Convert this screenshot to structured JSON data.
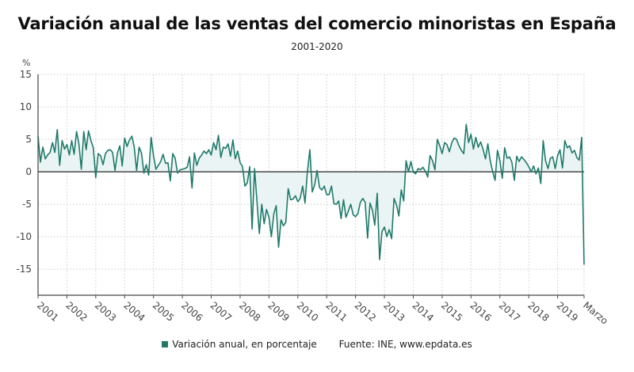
{
  "header": {
    "title": "Variación anual de las ventas del comercio minoristas en España",
    "subtitle": "2001-2020"
  },
  "legend": {
    "series_label": "Variación anual, en porcentaje",
    "source": "Fuente: INE, www.epdata.es",
    "swatch_color": "#1f7a6b"
  },
  "colors": {
    "line": "#1f7a6b",
    "area": "#e9f3f3",
    "zero_line": "#555555",
    "grid": "#d8d8d8"
  },
  "chart_data": {
    "type": "line",
    "title": "Variación anual de las ventas del comercio minoristas en España",
    "subtitle": "2001-2020",
    "xlabel": "",
    "ylabel": "%",
    "ylim": [
      -19,
      15
    ],
    "yticks": [
      15,
      10,
      5,
      0,
      -5,
      -10,
      -15
    ],
    "xtick_labels": [
      "2001",
      "2002",
      "2003",
      "2004",
      "2005",
      "2006",
      "2007",
      "2008",
      "2009",
      "2010",
      "2011",
      "2012",
      "2013",
      "2014",
      "2015",
      "2016",
      "2017",
      "2018",
      "2019",
      "Marzo"
    ],
    "grid": true,
    "legend_position": "bottom",
    "series": [
      {
        "name": "Variación anual, en porcentaje",
        "frequency": "monthly",
        "start": "2001-01",
        "end": "2020-03",
        "values": [
          5.5,
          1.5,
          3.8,
          2.0,
          2.6,
          3.0,
          4.5,
          3.0,
          6.5,
          1.0,
          4.8,
          3.5,
          4.2,
          2.6,
          4.8,
          2.7,
          6.2,
          4.3,
          0.4,
          6.2,
          3.4,
          6.3,
          4.8,
          3.7,
          -0.9,
          2.8,
          2.5,
          1.1,
          2.8,
          3.3,
          3.4,
          3.0,
          0.2,
          2.9,
          4.0,
          0.9,
          5.2,
          3.9,
          4.9,
          5.5,
          3.8,
          0.2,
          3.8,
          2.9,
          -0.2,
          1.1,
          -0.5,
          5.3,
          2.5,
          0.4,
          1.0,
          1.6,
          2.7,
          1.3,
          1.4,
          -1.4,
          2.8,
          2.1,
          -0.2,
          0.3,
          0.4,
          0.5,
          0.7,
          2.3,
          -2.5,
          2.9,
          1.0,
          2.1,
          2.6,
          3.2,
          2.8,
          3.4,
          2.6,
          4.5,
          3.4,
          5.6,
          2.2,
          3.8,
          3.6,
          4.3,
          2.4,
          4.9,
          2.0,
          3.2,
          1.4,
          0.8,
          -2.2,
          -1.7,
          0.8,
          -8.8,
          0.5,
          -4.5,
          -9.5,
          -5.0,
          -8.0,
          -5.8,
          -7.0,
          -10.0,
          -6.5,
          -5.2,
          -11.6,
          -7.4,
          -8.3,
          -7.8,
          -2.6,
          -4.3,
          -4.2,
          -3.7,
          -4.6,
          -4.1,
          -2.2,
          -4.8,
          0.0,
          3.4,
          -3.1,
          -2.0,
          0.2,
          -2.4,
          -2.8,
          -2.2,
          -3.5,
          -3.5,
          -2.2,
          -4.9,
          -5.0,
          -4.5,
          -7.2,
          -4.3,
          -7.0,
          -6.1,
          -5.0,
          -6.6,
          -6.9,
          -6.4,
          -4.7,
          -4.1,
          -4.7,
          -10.2,
          -4.8,
          -5.9,
          -8.2,
          -3.3,
          -13.5,
          -9.2,
          -8.5,
          -10.0,
          -8.9,
          -10.3,
          -4.1,
          -5.1,
          -6.8,
          -2.8,
          -4.5,
          1.7,
          0.0,
          1.6,
          0.0,
          -0.3,
          0.5,
          0.3,
          0.7,
          0.1,
          -0.8,
          2.5,
          1.7,
          0.3,
          5.0,
          4.0,
          2.8,
          4.5,
          4.2,
          3.1,
          4.5,
          5.2,
          5.0,
          4.0,
          3.3,
          2.8,
          7.3,
          4.5,
          5.8,
          3.5,
          5.3,
          3.8,
          4.6,
          3.5,
          2.0,
          4.3,
          1.7,
          0.0,
          -1.3,
          3.3,
          1.7,
          -1.0,
          3.7,
          2.1,
          2.3,
          1.5,
          -1.3,
          2.4,
          1.6,
          2.3,
          1.9,
          1.4,
          0.8,
          0.0,
          0.9,
          -0.3,
          0.6,
          -1.8,
          4.8,
          1.7,
          0.5,
          2.1,
          2.3,
          0.5,
          2.5,
          3.4,
          0.6,
          4.8,
          3.7,
          4.0,
          2.9,
          3.3,
          2.2,
          1.8,
          5.3,
          -14.3
        ]
      }
    ]
  }
}
